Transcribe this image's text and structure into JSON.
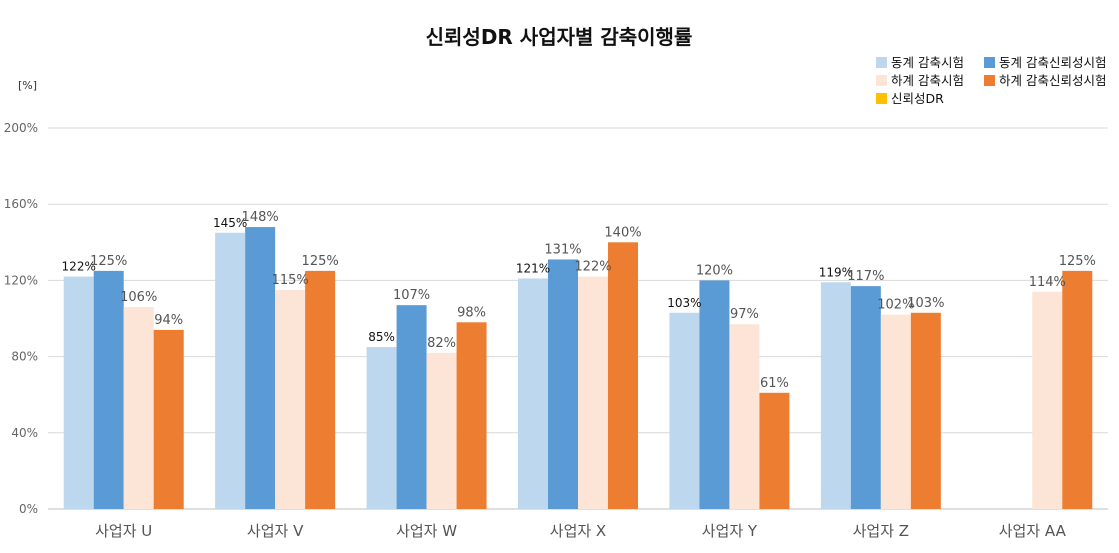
{
  "chart_data": {
    "type": "bar",
    "title": "신뢰성DR 사업자별 감축이행률",
    "unit_label": "[%]",
    "yticks": [
      "0%",
      "40%",
      "80%",
      "120%",
      "160%",
      "200%"
    ],
    "ylim": [
      0,
      200
    ],
    "grid": true,
    "legend_position": "top-right",
    "categories": [
      "사업자 U",
      "사업자 V",
      "사업자 W",
      "사업자 X",
      "사업자 Y",
      "사업자 Z",
      "사업자 AA"
    ],
    "series": [
      {
        "name": "동계 감축시험",
        "color": "#BDD7EE",
        "values": [
          122,
          145,
          85,
          121,
          103,
          119,
          null
        ],
        "labels": [
          "122%",
          "145%",
          "85%",
          "121%",
          "103%",
          "119%",
          ""
        ]
      },
      {
        "name": "동계 감축신뢰성시험",
        "color": "#5B9BD5",
        "values": [
          125,
          148,
          107,
          131,
          120,
          117,
          null
        ],
        "labels": [
          "125%",
          "148%",
          "107%",
          "131%",
          "120%",
          "117%",
          ""
        ]
      },
      {
        "name": "하계 감축시험",
        "color": "#FCE4D6",
        "values": [
          106,
          115,
          82,
          122,
          97,
          102,
          114
        ],
        "labels": [
          "106%",
          "115%",
          "82%",
          "122%",
          "97%",
          "102%",
          "114%"
        ]
      },
      {
        "name": "하계 감축신뢰성시험",
        "color": "#ED7D31",
        "values": [
          94,
          125,
          98,
          140,
          61,
          103,
          125
        ],
        "labels": [
          "94%",
          "125%",
          "98%",
          "140%",
          "61%",
          "103%",
          "125%"
        ]
      },
      {
        "name": "신뢰성DR",
        "color": "#FFC000",
        "values": [
          null,
          null,
          null,
          null,
          null,
          null,
          null
        ],
        "labels": [
          "",
          "",
          "",
          "",
          "",
          "",
          ""
        ]
      }
    ]
  }
}
